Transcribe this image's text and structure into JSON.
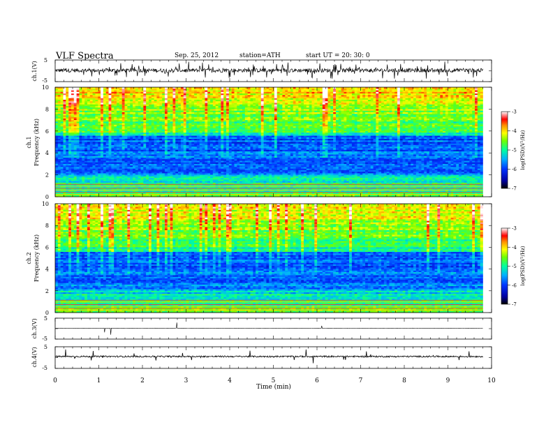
{
  "header": {
    "title": "VLF  Spectra",
    "date": "Sep. 25, 2012",
    "station": "station=ATH",
    "start": "start  UT  =    20: 30: 0"
  },
  "chart_data": [
    {
      "type": "line",
      "ylabel": "ch.1(V)",
      "ylim": [
        -5,
        5
      ],
      "yticks": [
        "5",
        "-5"
      ],
      "xlim": [
        0,
        10
      ]
    },
    {
      "type": "heatmap",
      "ylabel": "Frequency  (kHz)",
      "channel_label": "ch.1",
      "ylim": [
        0,
        10
      ],
      "yticks": [
        "0",
        "2",
        "4",
        "6",
        "8",
        "10"
      ],
      "xlim": [
        0,
        10
      ],
      "colorbar": {
        "label": "log(PSD)(V²/Hz)",
        "ticks": [
          "-3",
          "-4",
          "-5",
          "-6",
          "-7"
        ],
        "range": [
          -7,
          -3
        ]
      }
    },
    {
      "type": "heatmap",
      "ylabel": "Frequency  (kHz)",
      "channel_label": "ch.2",
      "ylim": [
        0,
        10
      ],
      "yticks": [
        "0",
        "2",
        "4",
        "6",
        "8",
        "10"
      ],
      "xlim": [
        0,
        10
      ],
      "colorbar": {
        "label": "log(PSD)(V²/Hz)",
        "ticks": [
          "-3",
          "-4",
          "-5",
          "-6",
          "-7"
        ],
        "range": [
          -7,
          -3
        ]
      }
    },
    {
      "type": "line",
      "ylabel": "ch.3(V)",
      "ylim": [
        -5,
        5
      ],
      "yticks": [
        "5",
        "-5"
      ],
      "xlim": [
        0,
        10
      ]
    },
    {
      "type": "line",
      "ylabel": "ch.4(V)",
      "ylim": [
        -5,
        5
      ],
      "yticks": [
        "5",
        "-5"
      ],
      "xlim": [
        0,
        10
      ]
    }
  ],
  "x_axis": {
    "label": "Time  (min)",
    "ticks": [
      "0",
      "1",
      "2",
      "3",
      "4",
      "5",
      "6",
      "7",
      "8",
      "9",
      "10"
    ],
    "range": [
      0,
      10
    ],
    "data_end": 9.8
  }
}
